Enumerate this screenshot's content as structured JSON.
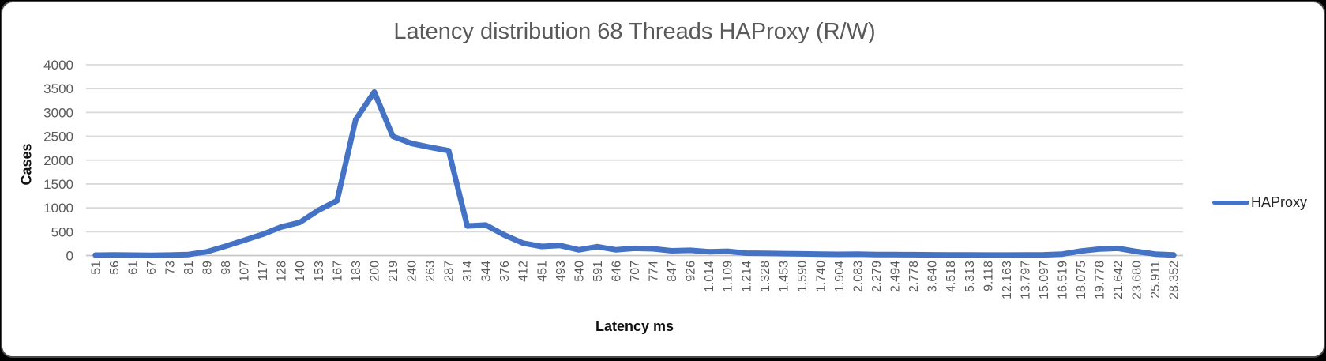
{
  "frame": {
    "background": "#ffffff",
    "border_color": "#4a4a4a"
  },
  "chart_data": {
    "type": "line",
    "title": "Latency distribution 68 Threads HAProxy (R/W)",
    "xlabel": "Latency ms",
    "ylabel": "Cases",
    "categories": [
      "51",
      "56",
      "61",
      "67",
      "73",
      "81",
      "89",
      "98",
      "107",
      "117",
      "128",
      "140",
      "153",
      "167",
      "183",
      "200",
      "219",
      "240",
      "263",
      "287",
      "314",
      "344",
      "376",
      "412",
      "451",
      "493",
      "540",
      "591",
      "646",
      "707",
      "774",
      "847",
      "926",
      "1.014",
      "1.109",
      "1.214",
      "1.328",
      "1.453",
      "1.590",
      "1.740",
      "1.904",
      "2.083",
      "2.279",
      "2.494",
      "2.778",
      "3.640",
      "4.518",
      "5.313",
      "9.118",
      "12.163",
      "13.797",
      "15.097",
      "16.519",
      "18.075",
      "19.778",
      "21.642",
      "23.680",
      "25.911",
      "28.352"
    ],
    "series": [
      {
        "name": "HAProxy",
        "color": "#4472C4",
        "values": [
          8,
          12,
          8,
          5,
          10,
          22,
          80,
          195,
          320,
          445,
          600,
          695,
          950,
          1150,
          2850,
          3430,
          2500,
          2350,
          2270,
          2200,
          620,
          640,
          430,
          260,
          190,
          210,
          120,
          185,
          120,
          150,
          140,
          100,
          110,
          80,
          90,
          50,
          45,
          40,
          35,
          30,
          25,
          30,
          22,
          20,
          18,
          15,
          12,
          12,
          10,
          10,
          12,
          15,
          30,
          95,
          135,
          150,
          85,
          30,
          12
        ]
      }
    ],
    "y_ticks": [
      0,
      500,
      1000,
      1500,
      2000,
      2500,
      3000,
      3500,
      4000
    ],
    "ylim": [
      0,
      4000
    ],
    "grid": "horizontal",
    "legend_position": "right",
    "colors": {
      "gridline": "#d9d9d9",
      "axis_line": "#c6c6c6",
      "tick_label": "#595959",
      "title": "#595959",
      "axis_title": "#111111",
      "legend_text": "#262626"
    }
  }
}
